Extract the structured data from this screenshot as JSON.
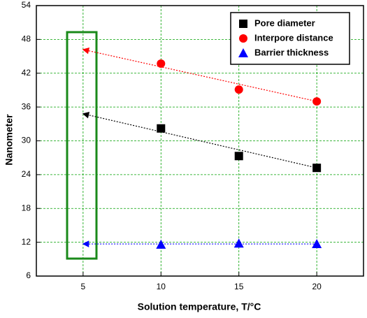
{
  "chart_data": {
    "type": "scatter",
    "x_label": "Solution temperature, T/°C",
    "y_label": "Nanometer",
    "xlim": [
      2,
      23
    ],
    "xticks": [
      5,
      10,
      15,
      20
    ],
    "ylim": [
      6,
      54
    ],
    "yticks": [
      6,
      12,
      18,
      24,
      30,
      36,
      42,
      48,
      54
    ],
    "grid": true,
    "grid_color": "#00a000",
    "legend": "upper right",
    "series": [
      {
        "name": "Pore diameter",
        "color": "#000000",
        "marker": "square",
        "x": [
          10,
          15,
          20
        ],
        "values": [
          32.2,
          27.3,
          25.2
        ],
        "extrapolation": {
          "x": 5,
          "y": 34.8
        }
      },
      {
        "name": "Interpore distance",
        "color": "#ff0000",
        "marker": "circle",
        "x": [
          10,
          15,
          20
        ],
        "values": [
          43.7,
          39.1,
          37.0
        ],
        "extrapolation": {
          "x": 5,
          "y": 46.2
        }
      },
      {
        "name": "Barrier thickness",
        "color": "#0000ff",
        "marker": "triangle",
        "x": [
          10,
          15,
          20
        ],
        "values": [
          11.6,
          11.8,
          11.7
        ],
        "extrapolation": {
          "x": 5,
          "y": 11.7
        }
      }
    ]
  }
}
